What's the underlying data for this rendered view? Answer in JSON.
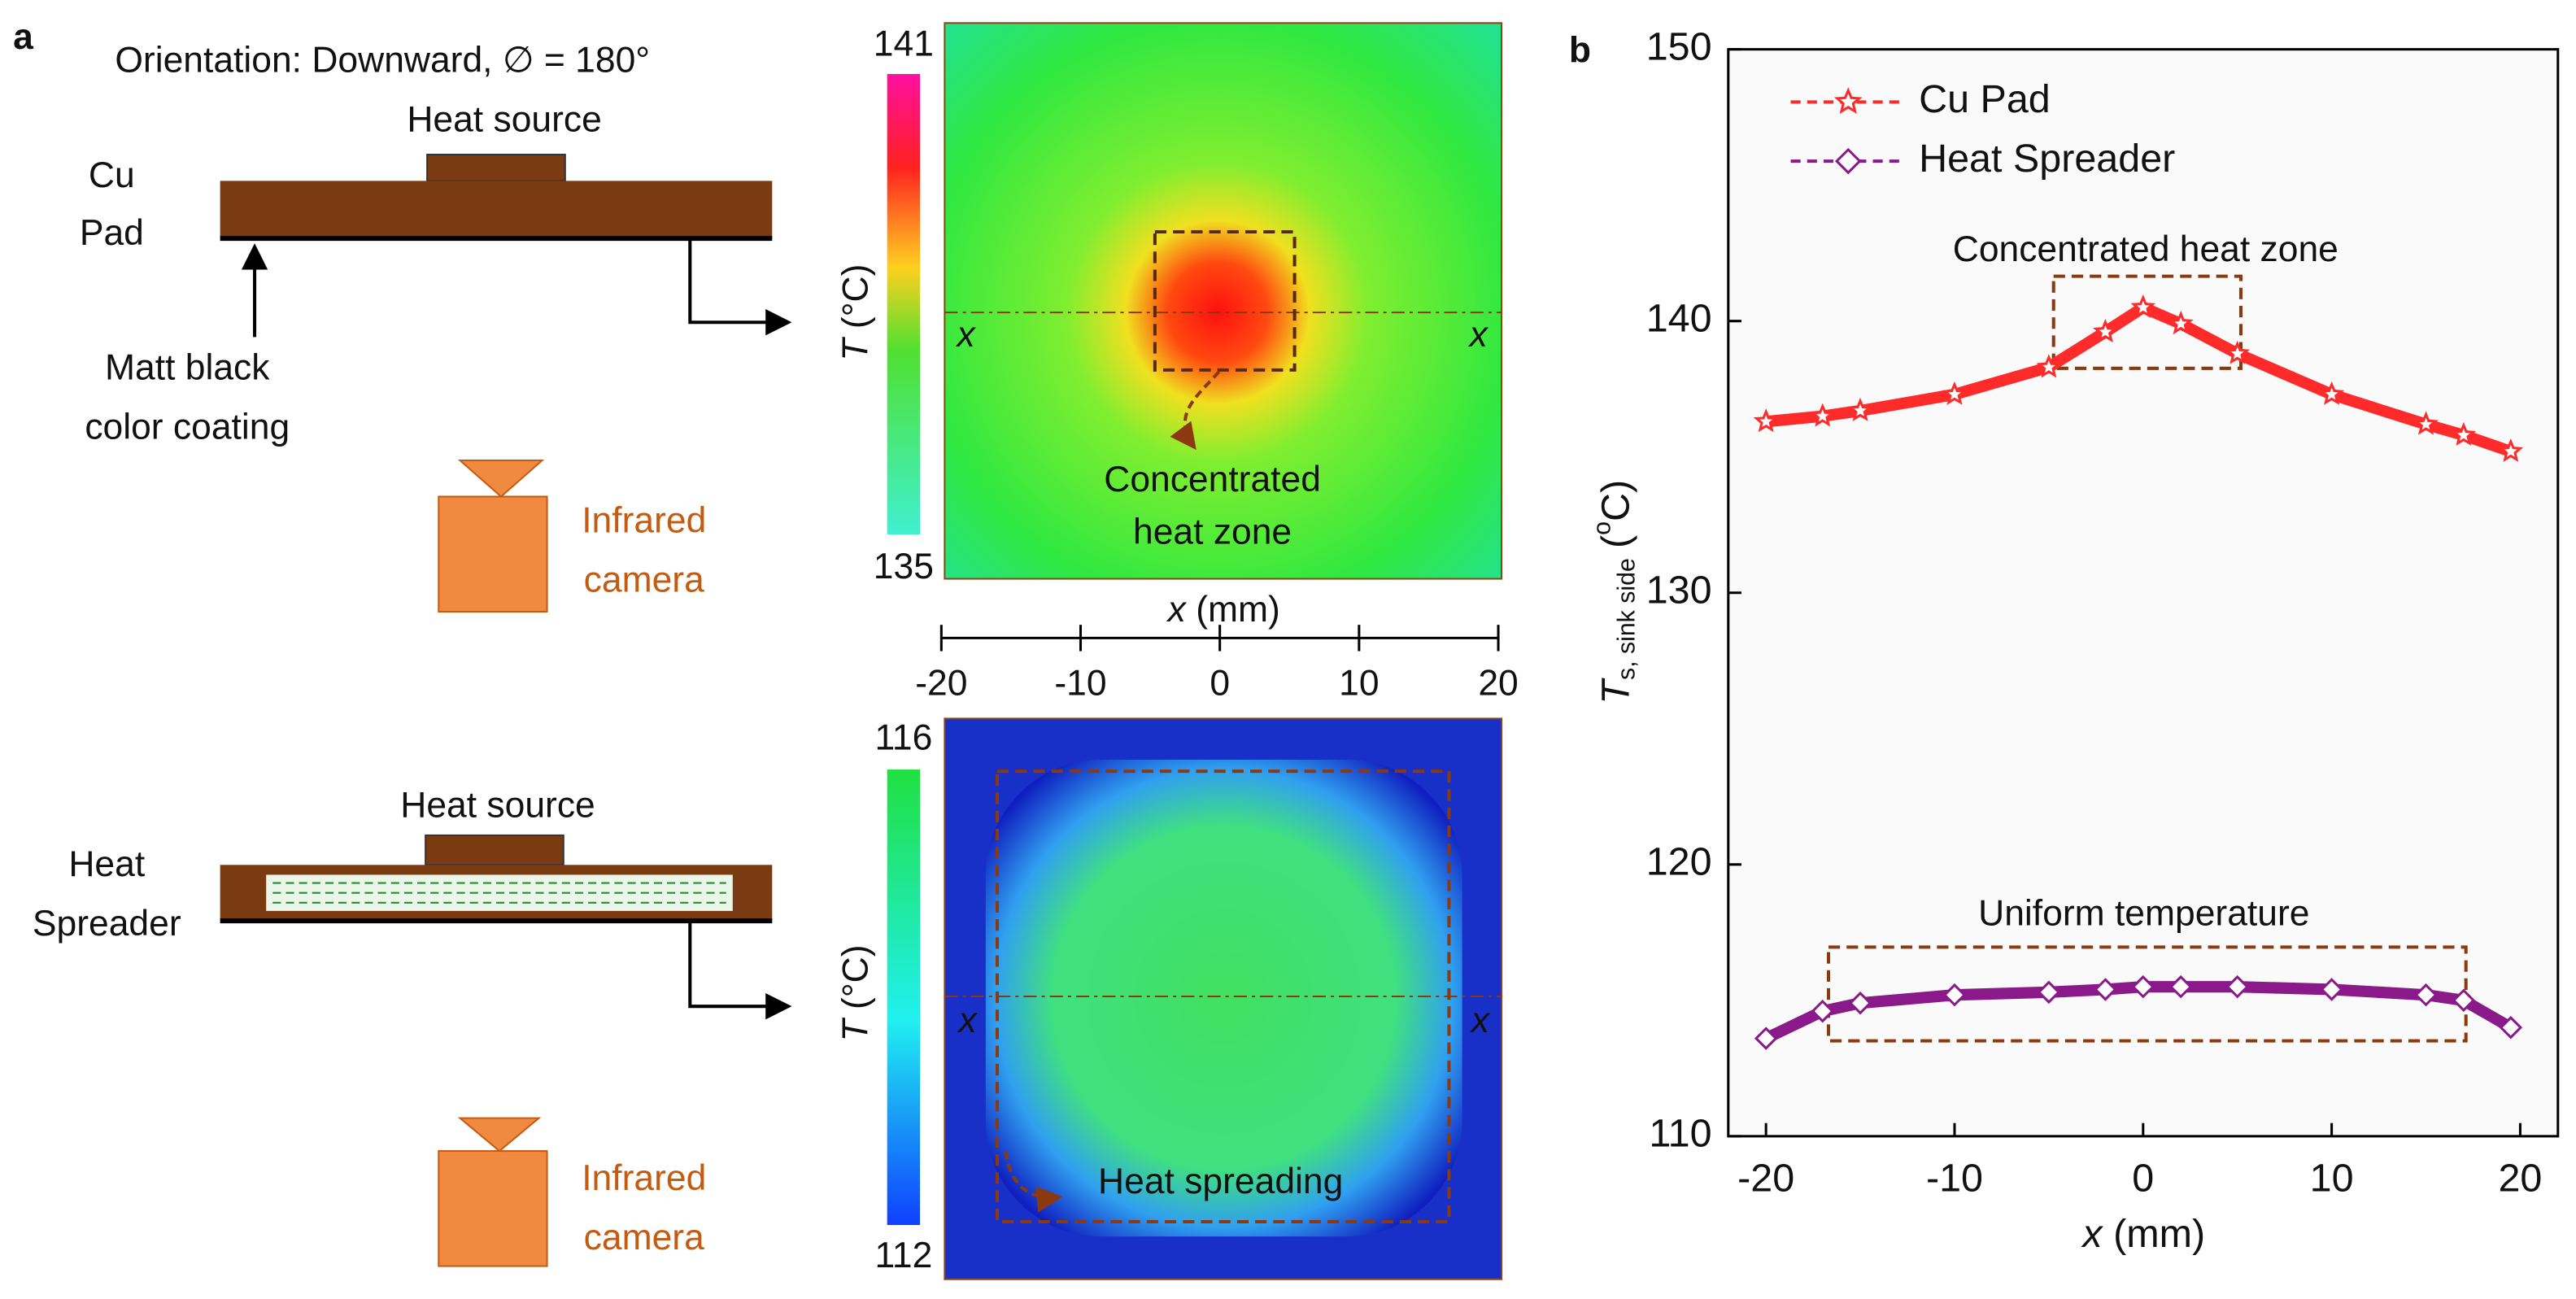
{
  "panel_a": {
    "label": "a",
    "orientation": "Orientation: Downward, ∅ = 180°",
    "top_diagram": {
      "heat_source": "Heat source",
      "pad_line1": "Cu",
      "pad_line2": "Pad",
      "coating_line1": "Matt black",
      "coating_line2": "color coating",
      "camera_line1": "Infrared",
      "camera_line2": "camera"
    },
    "bottom_diagram": {
      "heat_source": "Heat source",
      "pad_line1": "Heat",
      "pad_line2": "Spreader",
      "camera_line1": "Infrared",
      "camera_line2": "camera"
    },
    "top_map": {
      "colorbar_max": "141",
      "colorbar_min": "135",
      "colorbar_symbol": "T",
      "colorbar_unit": "(°C)",
      "x_left": "x",
      "x_right": "x",
      "zone_line1": "Concentrated",
      "zone_line2": "heat zone"
    },
    "x_axis": {
      "symbol": "x",
      "unit": "(mm)",
      "xlim": [
        -20,
        20
      ],
      "xticks": [
        -20,
        -10,
        0,
        10,
        20
      ]
    },
    "bottom_map": {
      "colorbar_max": "116",
      "colorbar_min": "112",
      "colorbar_symbol": "T",
      "colorbar_unit": "(°C)",
      "x_left": "x",
      "x_right": "x",
      "zone_label": "Heat spreading"
    }
  },
  "chart_data": {
    "type": "line",
    "label": "b",
    "x_label_symbol": "x",
    "x_label_unit": "(mm)",
    "y_label_symbol": "T",
    "y_label_sub": "s, sink side",
    "y_label_open": "(",
    "y_label_sup": "o",
    "y_label_close": "C)",
    "x": [
      -20,
      -17,
      -15,
      -10,
      -5,
      -2,
      0,
      2,
      5,
      10,
      15,
      17,
      19.5
    ],
    "series": [
      {
        "name": "Cu Pad",
        "color": "#ff2a2a",
        "marker": "star",
        "values": [
          136.3,
          136.5,
          136.7,
          137.3,
          138.3,
          139.6,
          140.5,
          139.9,
          138.8,
          137.3,
          136.2,
          135.8,
          135.2
        ]
      },
      {
        "name": "Heat Spreader",
        "color": "#8a1a8a",
        "marker": "diamond",
        "values": [
          113.6,
          114.6,
          114.9,
          115.2,
          115.3,
          115.4,
          115.5,
          115.5,
          115.5,
          115.4,
          115.2,
          115.0,
          114.0
        ]
      }
    ],
    "xlim": [
      -22,
      22
    ],
    "ylim": [
      110,
      150
    ],
    "xticks": [
      -20,
      -10,
      0,
      10,
      20
    ],
    "yticks": [
      110,
      120,
      130,
      140,
      150
    ],
    "annotations": [
      "Concentrated heat zone",
      "Uniform temperature"
    ],
    "legend": "upper left"
  }
}
